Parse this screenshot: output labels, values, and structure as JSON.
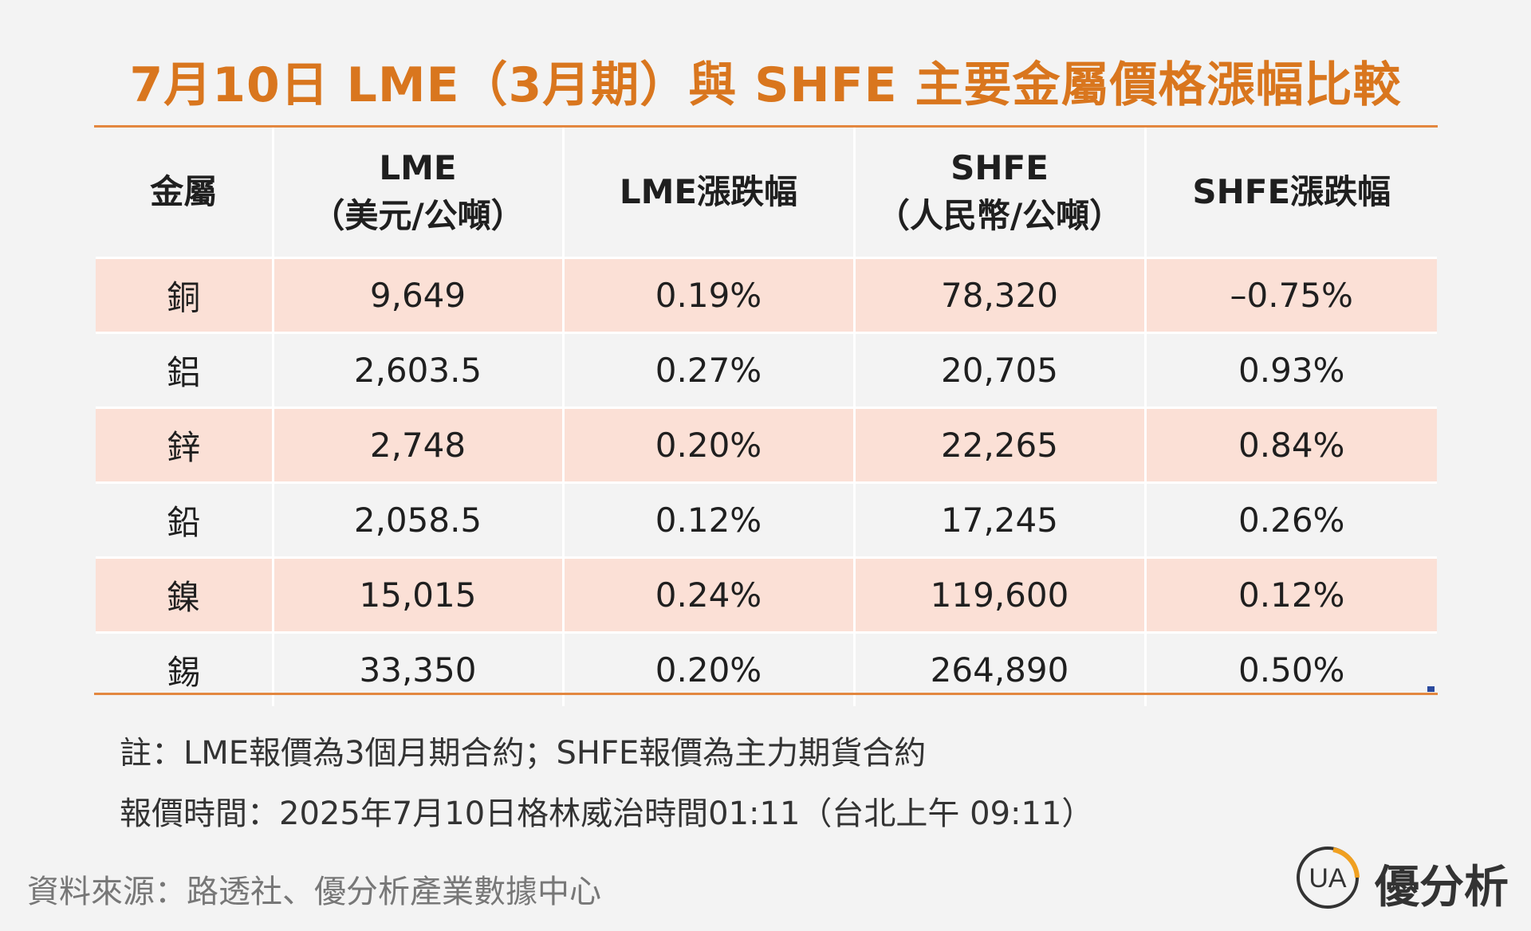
{
  "chart_data": {
    "type": "table",
    "title": "7月10日 LME（3月期）與 SHFE 主要金屬價格漲幅比較",
    "columns": [
      {
        "line1": "金屬",
        "line2": ""
      },
      {
        "line1": "LME",
        "line2": "（美元/公噸）"
      },
      {
        "line1": "LME漲跌幅",
        "line2": ""
      },
      {
        "line1": "SHFE",
        "line2": "（人民幣/公噸）"
      },
      {
        "line1": "SHFE漲跌幅",
        "line2": ""
      }
    ],
    "rows": [
      [
        "銅",
        "9,649",
        "0.19%",
        "78,320",
        "–0.75%"
      ],
      [
        "鋁",
        "2,603.5",
        "0.27%",
        "20,705",
        "0.93%"
      ],
      [
        "鋅",
        "2,748",
        "0.20%",
        "22,265",
        "0.84%"
      ],
      [
        "鉛",
        "2,058.5",
        "0.12%",
        "17,245",
        "0.26%"
      ],
      [
        "鎳",
        "15,015",
        "0.24%",
        "119,600",
        "0.12%"
      ],
      [
        "錫",
        "33,350",
        "0.20%",
        "264,890",
        "0.50%"
      ]
    ],
    "colors": {
      "title": "#d9761e",
      "rule": "#e3873f",
      "row_highlight": "#fbe0d6",
      "background": "#f3f3f3"
    }
  },
  "notes": {
    "note1": "註：LME報價為3個月期合約；SHFE報價為主力期貨合約",
    "note2": "報價時間：2025年7月10日格林威治時間01:11（台北上午 09:11）"
  },
  "source": "資料來源：路透社、優分析產業數據中心",
  "logo": {
    "mark_text": "UA",
    "name": "優分析",
    "mark_colors": {
      "ring": "#333333",
      "accent": "#f0a020"
    }
  }
}
